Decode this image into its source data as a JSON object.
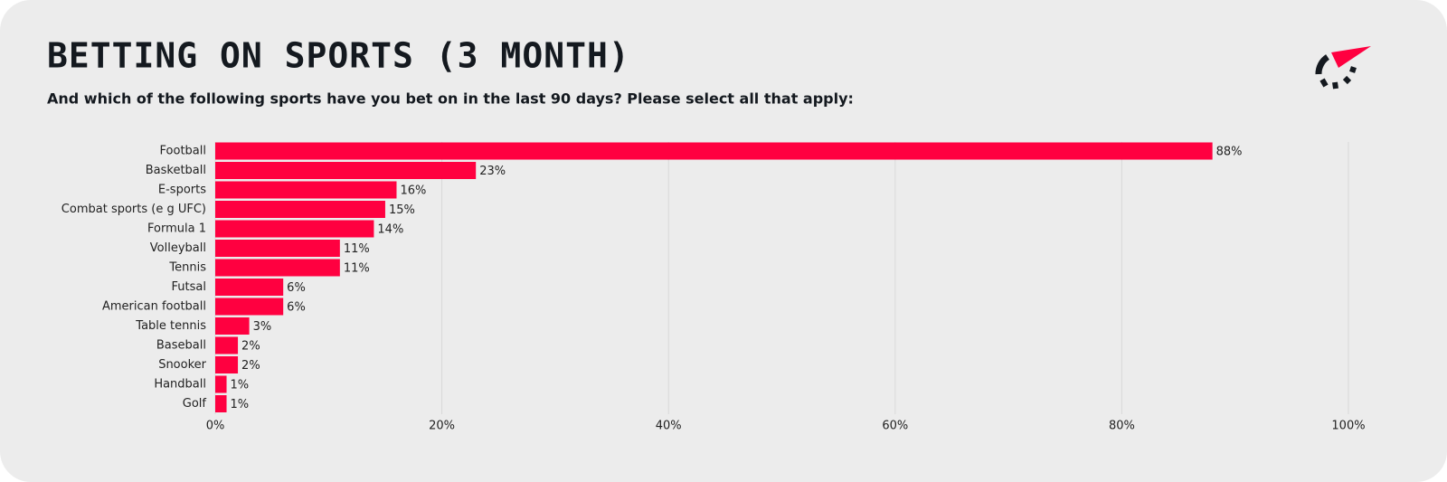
{
  "chart_data": {
    "type": "hbar",
    "title": "BETTING ON SPORTS (3 MONTH)",
    "subtitle": "And which of the following sports have you bet on in the last 90 days? Please select all that apply:",
    "categories": [
      "Football",
      "Basketball",
      "E-sports",
      "Combat sports (e g UFC)",
      "Formula 1",
      "Volleyball",
      "Tennis",
      "Futsal",
      "American football",
      "Table tennis",
      "Baseball",
      "Snooker",
      "Handball",
      "Golf"
    ],
    "values": [
      88,
      23,
      16,
      15,
      14,
      11,
      11,
      6,
      6,
      3,
      2,
      2,
      1,
      1
    ],
    "value_labels": [
      "88%",
      "23%",
      "16%",
      "15%",
      "14%",
      "11%",
      "11%",
      "6%",
      "6%",
      "3%",
      "2%",
      "2%",
      "1%",
      "1%"
    ],
    "color": "#ff0040",
    "xlim": [
      0,
      100
    ],
    "xticks": [
      {
        "value": 0,
        "label": "0%"
      },
      {
        "value": 20,
        "label": "20%"
      },
      {
        "value": 40,
        "label": "40%"
      },
      {
        "value": 60,
        "label": "60%"
      },
      {
        "value": 80,
        "label": "80%"
      },
      {
        "value": 100,
        "label": "100%"
      }
    ],
    "grid": true
  }
}
